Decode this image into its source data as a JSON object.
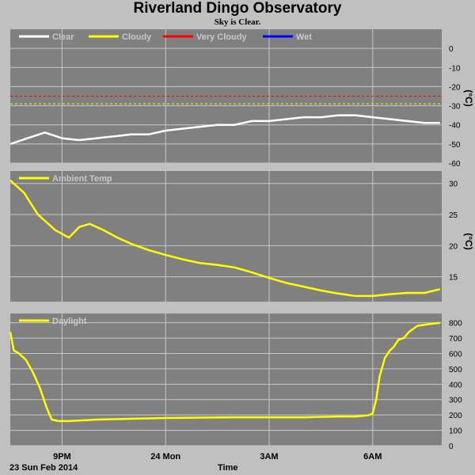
{
  "header": {
    "title": "Riverland Dingo Observatory",
    "subtitle": "Sky is Clear."
  },
  "footer": {
    "date_label": "23 Sun Feb 2014",
    "x_axis_title": "Time"
  },
  "colors": {
    "plot_background": "#808080",
    "grid": "#c8c8c8",
    "clear": "#ffffff",
    "cloudy": "#ffff00",
    "very_cloudy": "#ff0000",
    "wet": "#0000ff",
    "text": "#000000"
  },
  "chart_data": [
    {
      "type": "line",
      "name": "sky-temperature",
      "legend": [
        {
          "label": "Clear",
          "color": "#ffffff"
        },
        {
          "label": "Cloudy",
          "color": "#ffff00"
        },
        {
          "label": "Very Cloudy",
          "color": "#ff0000"
        },
        {
          "label": "Wet",
          "color": "#0000ff"
        }
      ],
      "y_axis_label": "(°C)",
      "ylim": [
        -60,
        10
      ],
      "yticks": [
        0,
        -10,
        -20,
        -30,
        -40,
        -50,
        -60
      ],
      "thresholds": [
        {
          "label": "Very Cloudy",
          "value": -25,
          "color": "#ff0000"
        },
        {
          "label": "Cloudy",
          "value": -29,
          "color": "#ffff00"
        }
      ],
      "series": [
        {
          "name": "Clear",
          "color": "#ffffff",
          "x": [
            19.5,
            20.0,
            20.5,
            21.0,
            21.5,
            22.0,
            22.5,
            23.0,
            23.5,
            24.0,
            24.5,
            25.0,
            25.5,
            26.0,
            26.5,
            27.0,
            27.5,
            28.0,
            28.5,
            29.0,
            29.5,
            30.0,
            30.5,
            31.0,
            31.5,
            31.95
          ],
          "y": [
            -50,
            -47,
            -44,
            -47,
            -48,
            -47,
            -46,
            -45,
            -45,
            -43,
            -42,
            -41,
            -40,
            -40,
            -38,
            -38,
            -37,
            -36,
            -36,
            -35,
            -35,
            -36,
            -37,
            -38,
            -39,
            -39
          ]
        }
      ]
    },
    {
      "type": "line",
      "name": "ambient-temperature",
      "legend": [
        {
          "label": "Ambient Temp",
          "color": "#ffff00"
        }
      ],
      "y_axis_label": "(°C)",
      "ylim": [
        11,
        32
      ],
      "yticks": [
        30,
        25,
        20,
        15
      ],
      "series": [
        {
          "name": "Ambient Temp",
          "color": "#ffff00",
          "x": [
            19.5,
            19.9,
            20.3,
            20.8,
            21.2,
            21.5,
            21.8,
            22.2,
            22.6,
            23.0,
            23.5,
            24.0,
            24.5,
            25.0,
            25.5,
            26.0,
            26.5,
            27.0,
            27.5,
            28.0,
            28.5,
            29.0,
            29.5,
            30.0,
            30.5,
            31.0,
            31.5,
            31.95
          ],
          "y": [
            30.5,
            28.5,
            25,
            22.5,
            21.3,
            23,
            23.5,
            22.5,
            21.3,
            20.3,
            19.3,
            18.5,
            17.8,
            17.2,
            16.9,
            16.5,
            15.7,
            14.8,
            14,
            13.4,
            12.8,
            12.3,
            11.9,
            11.9,
            12.2,
            12.4,
            12.4,
            13
          ]
        }
      ]
    },
    {
      "type": "line",
      "name": "daylight",
      "legend": [
        {
          "label": "Daylight",
          "color": "#ffff00"
        }
      ],
      "ylim": [
        0,
        860
      ],
      "yticks": [
        800,
        700,
        600,
        500,
        400,
        300,
        200,
        100,
        0
      ],
      "series": [
        {
          "name": "Daylight",
          "color": "#ffff00",
          "x": [
            19.5,
            19.6,
            19.75,
            19.95,
            20.15,
            20.35,
            20.55,
            20.7,
            20.9,
            21.2,
            22.0,
            24.0,
            26.0,
            28.0,
            29.0,
            29.5,
            29.75,
            29.9,
            30.0,
            30.1,
            30.2,
            30.35,
            30.5,
            30.6,
            30.75,
            30.9,
            31.05,
            31.3,
            31.6,
            31.95
          ],
          "y": [
            740,
            620,
            600,
            560,
            480,
            380,
            250,
            170,
            160,
            160,
            170,
            180,
            185,
            185,
            190,
            190,
            195,
            200,
            210,
            300,
            450,
            570,
            620,
            640,
            690,
            700,
            740,
            780,
            790,
            800
          ]
        }
      ]
    }
  ],
  "x_axis": {
    "ticks": [
      {
        "label": "9PM",
        "value": 21
      },
      {
        "label": "24 Mon",
        "value": 24
      },
      {
        "label": "3AM",
        "value": 27
      },
      {
        "label": "6AM",
        "value": 30
      }
    ],
    "xlim": [
      19.5,
      32
    ]
  }
}
